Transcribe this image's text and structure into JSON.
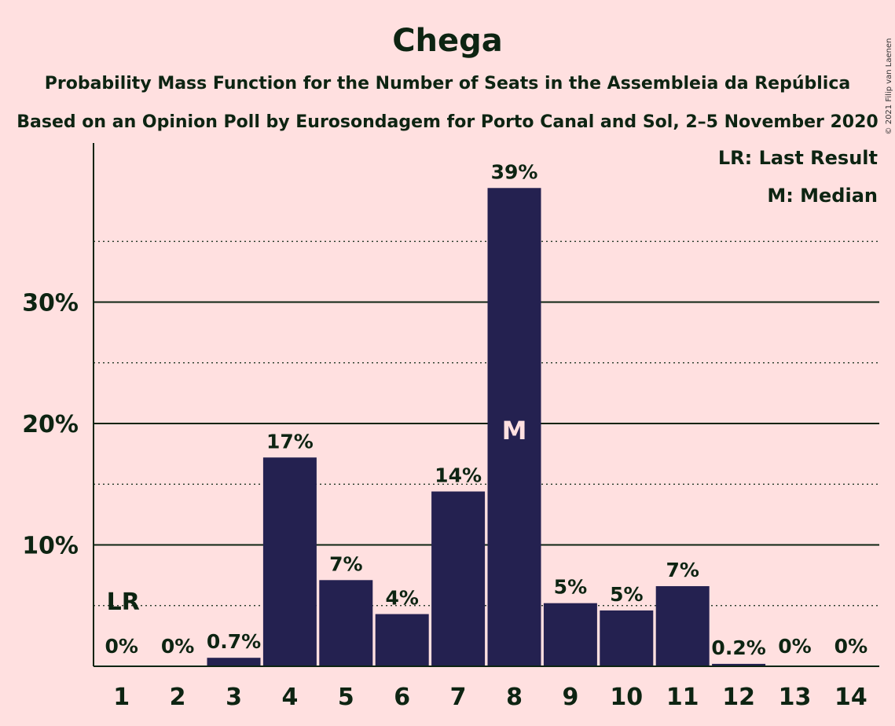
{
  "chart_data": {
    "type": "bar",
    "title": "Chega",
    "subtitle": "Probability Mass Function for the Number of Seats in the Assembleia da República",
    "subtitle2": "Based on an Opinion Poll by Eurosondagem for Porto Canal and Sol, 2–5 November 2020",
    "copyright": "© 2021 Filip van Laenen",
    "legend": [
      "LR: Last Result",
      "M: Median"
    ],
    "categories": [
      "1",
      "2",
      "3",
      "4",
      "5",
      "6",
      "7",
      "8",
      "9",
      "10",
      "11",
      "12",
      "13",
      "14"
    ],
    "values": [
      0,
      0,
      0.7,
      17.2,
      7.1,
      4.3,
      14.4,
      39.4,
      5.2,
      4.6,
      6.6,
      0.2,
      0,
      0
    ],
    "labels": [
      "0%",
      "0%",
      "0.7%",
      "17%",
      "7%",
      "4%",
      "14%",
      "39%",
      "5%",
      "5%",
      "7%",
      "0.2%",
      "0%",
      "0%"
    ],
    "ylim": [
      0,
      43
    ],
    "yticks": [
      10,
      20,
      30
    ],
    "ytick_labels": [
      "10%",
      "20%",
      "30%"
    ],
    "minor_gridlines": [
      5,
      15,
      25,
      35
    ],
    "last_result_index": 0,
    "last_result_marker": "LR",
    "median_index": 7,
    "median_marker": "M",
    "colors": {
      "background": "#FFE0E0",
      "bar": "#242150",
      "text": "#0D2412",
      "median_text": "#FFE0E0"
    }
  }
}
